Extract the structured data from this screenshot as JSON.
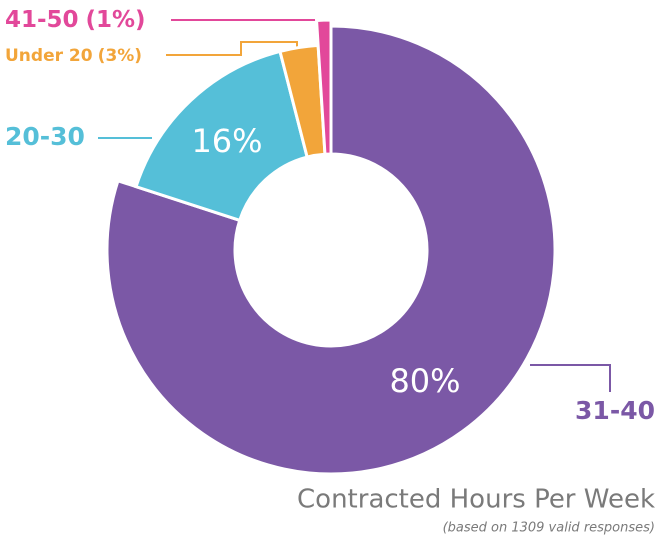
{
  "chart_data": {
    "type": "donut",
    "title": "Contracted Hours Per Week",
    "subtitle": "(based on 1309 valid responses)",
    "categories": [
      "31-40",
      "20-30",
      "Under 20",
      "41-50"
    ],
    "values": [
      80,
      16,
      3,
      1
    ],
    "value_labels": [
      "80%",
      "16%",
      "(3%)",
      "(1%)"
    ],
    "colors": [
      "#7b58a6",
      "#55bfd8",
      "#f2a53a",
      "#e2489a"
    ]
  }
}
